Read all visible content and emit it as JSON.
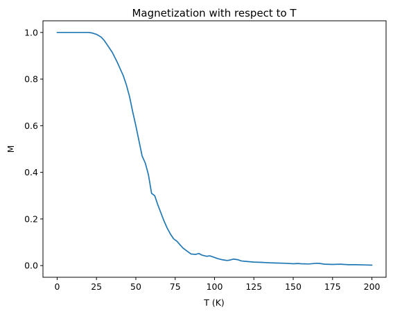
{
  "chart_data": {
    "type": "line",
    "title": "Magnetization with respect to T",
    "xlabel": "T (K)",
    "ylabel": "M",
    "xlim": [
      -9,
      209
    ],
    "ylim": [
      -0.05,
      1.05
    ],
    "grid": false,
    "legend": "none",
    "x_ticks": [
      0,
      25,
      50,
      75,
      100,
      125,
      150,
      175,
      200
    ],
    "x_tick_labels": [
      "0",
      "25",
      "50",
      "75",
      "100",
      "125",
      "150",
      "175",
      "200"
    ],
    "y_ticks": [
      0.0,
      0.2,
      0.4,
      0.6,
      0.8,
      1.0
    ],
    "y_tick_labels": [
      "0.0",
      "0.2",
      "0.4",
      "0.6",
      "0.8",
      "1.0"
    ],
    "line_color": "#1f77b4",
    "series": [
      {
        "x": [
          0,
          5,
          10,
          15,
          20,
          22,
          25,
          28,
          30,
          32,
          35,
          38,
          40,
          42,
          44,
          46,
          48,
          50,
          52,
          54,
          56,
          58,
          60,
          62,
          64,
          66,
          68,
          70,
          72,
          74,
          76,
          78,
          80,
          82,
          85,
          88,
          90,
          92,
          95,
          97,
          100,
          102,
          105,
          108,
          110,
          112,
          115,
          117,
          120,
          125,
          130,
          135,
          140,
          145,
          150,
          153,
          155,
          160,
          165,
          167,
          170,
          175,
          180,
          185,
          190,
          195,
          200
        ],
        "y": [
          1.0,
          1.0,
          1.0,
          1.0,
          1.0,
          0.998,
          0.992,
          0.98,
          0.965,
          0.945,
          0.915,
          0.875,
          0.845,
          0.815,
          0.775,
          0.725,
          0.66,
          0.6,
          0.535,
          0.47,
          0.44,
          0.39,
          0.31,
          0.3,
          0.26,
          0.225,
          0.19,
          0.16,
          0.135,
          0.115,
          0.105,
          0.09,
          0.075,
          0.065,
          0.05,
          0.048,
          0.052,
          0.045,
          0.04,
          0.042,
          0.035,
          0.03,
          0.025,
          0.022,
          0.024,
          0.028,
          0.025,
          0.02,
          0.018,
          0.015,
          0.014,
          0.012,
          0.011,
          0.01,
          0.008,
          0.009,
          0.008,
          0.007,
          0.01,
          0.009,
          0.006,
          0.005,
          0.006,
          0.004,
          0.004,
          0.003,
          0.002
        ]
      }
    ]
  }
}
